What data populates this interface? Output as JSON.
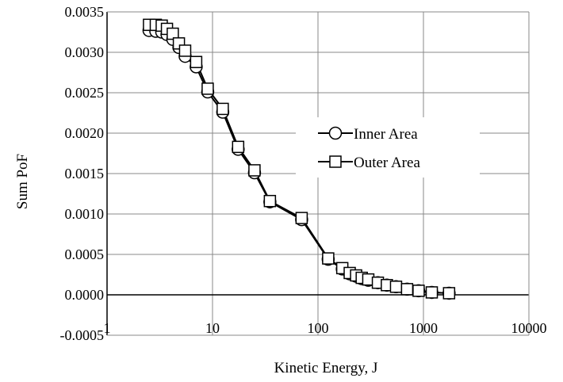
{
  "chart_data": {
    "type": "line",
    "title": "",
    "xlabel": "Kinetic Energy, J",
    "ylabel": "Sum PoF",
    "xscale": "log",
    "xlim": [
      1,
      10000
    ],
    "ylim": [
      -0.0005,
      0.0035
    ],
    "xticks": [
      "1",
      "10",
      "100",
      "1000",
      "10000"
    ],
    "yticks": [
      "-0.0005",
      "0.0000",
      "0.0005",
      "0.0010",
      "0.0015",
      "0.0020",
      "0.0025",
      "0.0030",
      "0.0035"
    ],
    "grid": true,
    "legend_position": "right",
    "colors": {
      "line": "#000000",
      "grid": "#888888",
      "marker_fill": "#ffffff"
    },
    "series": [
      {
        "name": "Inner Area",
        "marker": "circle",
        "x": [
          2.5,
          2.9,
          3.3,
          3.7,
          4.2,
          4.8,
          5.5,
          7.0,
          9.0,
          12.5,
          17.5,
          25,
          35,
          70,
          125,
          170,
          200,
          230,
          260,
          300,
          370,
          450,
          550,
          700,
          900,
          1200,
          1750
        ],
        "y": [
          0.00327,
          0.00326,
          0.00325,
          0.00322,
          0.00316,
          0.00306,
          0.00295,
          0.00282,
          0.00251,
          0.00226,
          0.0018,
          0.00151,
          0.00115,
          0.00093,
          0.00044,
          0.00032,
          0.00026,
          0.00023,
          0.0002,
          0.00018,
          0.00015,
          0.00012,
          0.0001,
          7e-05,
          5e-05,
          3e-05,
          2e-05
        ]
      },
      {
        "name": "Outer Area",
        "marker": "square",
        "x": [
          2.5,
          2.9,
          3.3,
          3.7,
          4.2,
          4.8,
          5.5,
          7.0,
          9.0,
          12.5,
          17.5,
          25,
          35,
          70,
          125,
          170,
          200,
          230,
          260,
          300,
          370,
          450,
          550,
          700,
          900,
          1200,
          1750
        ],
        "y": [
          0.00334,
          0.00334,
          0.00333,
          0.00329,
          0.00323,
          0.00311,
          0.00302,
          0.00288,
          0.00255,
          0.0023,
          0.00183,
          0.00154,
          0.00116,
          0.00095,
          0.00045,
          0.00033,
          0.00027,
          0.00024,
          0.00021,
          0.00019,
          0.00015,
          0.00012,
          0.0001,
          7e-05,
          5e-05,
          3e-05,
          2e-05
        ]
      }
    ]
  }
}
